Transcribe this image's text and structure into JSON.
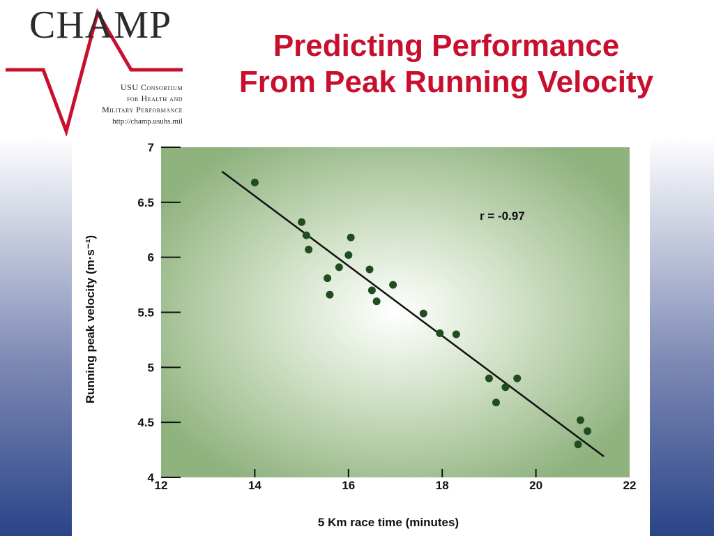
{
  "logo": {
    "champ": "CHAMP",
    "line1": "USU Consortium",
    "line2": "for Health and",
    "line3": "Military Performance",
    "url": "http://champ.usuhs.mil",
    "accent_color": "#c8102e"
  },
  "title": {
    "line1": "Predicting Performance",
    "line2": "From Peak Running Velocity"
  },
  "chart_data": {
    "type": "scatter",
    "xlabel": "5 Km race time (minutes)",
    "ylabel": "Running peak velocity (m·s⁻¹)",
    "xlim": [
      12,
      22
    ],
    "ylim": [
      4,
      7
    ],
    "x_ticks": [
      12,
      14,
      16,
      18,
      20,
      22
    ],
    "y_ticks": [
      4,
      4.5,
      5,
      5.5,
      6,
      6.5,
      7
    ],
    "annotation": "r = -0.97",
    "grid": false,
    "background_color": "#8fb27f",
    "point_color": "#1f4d1f",
    "line_color": "#111111",
    "series": [
      {
        "x": [
          14.0,
          15.0,
          15.1,
          15.15,
          15.55,
          15.6,
          15.8,
          16.0,
          16.05,
          16.45,
          16.5,
          16.6,
          16.95,
          17.6,
          17.95,
          18.3,
          19.0,
          19.15,
          19.35,
          19.6,
          20.9,
          20.95,
          21.1
        ],
        "y": [
          6.68,
          6.32,
          6.2,
          6.07,
          5.81,
          5.66,
          5.91,
          6.02,
          6.18,
          5.89,
          5.7,
          5.6,
          5.75,
          5.49,
          5.31,
          5.3,
          4.9,
          4.68,
          4.82,
          4.9,
          4.3,
          4.52,
          4.42
        ]
      }
    ],
    "regression_line": {
      "x": [
        13.3,
        21.45
      ],
      "y": [
        6.78,
        4.19
      ]
    }
  }
}
